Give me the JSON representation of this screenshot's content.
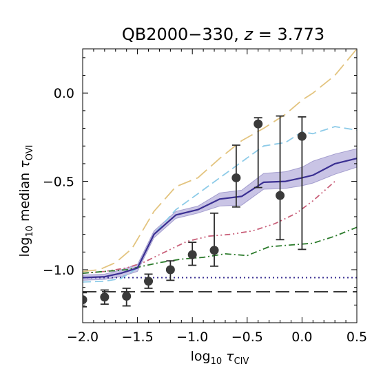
{
  "chart_data": {
    "type": "line",
    "title_main": "QB2000−330, ",
    "title_var": "z",
    "title_eq": " = 3.773",
    "xlabel_log": "log",
    "xlabel_base": "10",
    "xlabel_tau": " τ",
    "xlabel_sub": "CIV",
    "ylabel_prefix": "log",
    "ylabel_base": "10",
    "ylabel_text": " median ",
    "ylabel_tau": "τ",
    "ylabel_sub": "OVI",
    "xlim": [
      -2.0,
      0.5
    ],
    "ylim": [
      -1.3,
      0.25
    ],
    "xticks": [
      -2.0,
      -1.5,
      -1.0,
      -0.5,
      0.0,
      0.5
    ],
    "xtick_labels": [
      "−2.0",
      "−1.5",
      "−1.0",
      "−0.5",
      "0.0",
      "0.5"
    ],
    "yticks": [
      -1.0,
      -0.5,
      0.0
    ],
    "ytick_labels": [
      "−1.0",
      "−0.5",
      "0.0"
    ],
    "observed": {
      "x": [
        -2.0,
        -1.8,
        -1.6,
        -1.4,
        -1.2,
        -1.0,
        -0.8,
        -0.6,
        -0.4,
        -0.2,
        0.0
      ],
      "y": [
        -1.17,
        -1.155,
        -1.15,
        -1.065,
        -1.0,
        -0.915,
        -0.89,
        -0.48,
        -0.175,
        -0.58,
        -0.245
      ],
      "err_low": [
        0.04,
        0.04,
        0.055,
        0.04,
        0.06,
        0.06,
        0.09,
        0.165,
        0.36,
        0.25,
        0.64
      ],
      "err_high": [
        0.04,
        0.04,
        0.045,
        0.04,
        0.05,
        0.07,
        0.21,
        0.185,
        0.035,
        0.45,
        0.11
      ]
    },
    "series": [
      {
        "color": "#e3c47f",
        "style": "longdash",
        "x": [
          -2.0,
          -1.85,
          -1.7,
          -1.55,
          -1.35,
          -1.15,
          -0.95,
          -0.75,
          -0.55,
          -0.35,
          -0.15,
          0.0,
          0.1,
          0.3,
          0.5
        ],
        "y": [
          -1.01,
          -1.0,
          -0.96,
          -0.88,
          -0.67,
          -0.53,
          -0.48,
          -0.37,
          -0.27,
          -0.2,
          -0.12,
          -0.04,
          0.0,
          0.1,
          0.25
        ]
      },
      {
        "color": "#8dcbe8",
        "style": "dashed",
        "x": [
          -2.0,
          -1.8,
          -1.65,
          -1.5,
          -1.35,
          -1.15,
          -0.95,
          -0.75,
          -0.55,
          -0.35,
          -0.15,
          0.0,
          0.1,
          0.3,
          0.5
        ],
        "y": [
          -1.07,
          -1.065,
          -1.05,
          -0.99,
          -0.8,
          -0.66,
          -0.57,
          -0.48,
          -0.39,
          -0.3,
          -0.28,
          -0.22,
          -0.23,
          -0.19,
          -0.21
        ]
      },
      {
        "color": "#c9607a",
        "style": "dashdotdot",
        "x": [
          -2.0,
          -1.8,
          -1.6,
          -1.45,
          -1.25,
          -1.05,
          -0.85,
          -0.65,
          -0.45,
          -0.25,
          -0.05,
          0.1,
          0.3
        ],
        "y": [
          -1.02,
          -1.01,
          -0.99,
          -0.96,
          -0.9,
          -0.84,
          -0.81,
          -0.8,
          -0.78,
          -0.74,
          -0.68,
          -0.61,
          -0.5
        ]
      },
      {
        "color": "#2a7a2a",
        "style": "dashdot",
        "x": [
          -2.0,
          -1.8,
          -1.6,
          -1.45,
          -1.3,
          -1.1,
          -0.9,
          -0.7,
          -0.5,
          -0.3,
          -0.1,
          0.1,
          0.3,
          0.5
        ],
        "y": [
          -1.02,
          -1.01,
          -1.0,
          -0.98,
          -0.96,
          -0.94,
          -0.93,
          -0.91,
          -0.92,
          -0.87,
          -0.86,
          -0.85,
          -0.81,
          -0.76
        ]
      },
      {
        "color": "#3a2f92",
        "style": "solid",
        "band_color": "#b7b0dc",
        "x": [
          -2.0,
          -1.8,
          -1.65,
          -1.5,
          -1.35,
          -1.15,
          -0.95,
          -0.75,
          -0.55,
          -0.35,
          -0.15,
          0.0,
          0.1,
          0.3,
          0.5
        ],
        "y": [
          -1.045,
          -1.04,
          -1.02,
          -0.99,
          -0.8,
          -0.69,
          -0.66,
          -0.6,
          -0.585,
          -0.505,
          -0.5,
          -0.48,
          -0.465,
          -0.4,
          -0.37
        ],
        "band_low": [
          -1.06,
          -1.055,
          -1.04,
          -1.01,
          -0.82,
          -0.71,
          -0.68,
          -0.64,
          -0.635,
          -0.545,
          -0.54,
          -0.525,
          -0.51,
          -0.46,
          -0.42
        ],
        "band_high": [
          -1.03,
          -1.025,
          -1.0,
          -0.97,
          -0.78,
          -0.67,
          -0.64,
          -0.565,
          -0.55,
          -0.455,
          -0.445,
          -0.42,
          -0.385,
          -0.345,
          -0.315
        ]
      }
    ],
    "reference_lines": [
      {
        "y": -1.045,
        "color": "#3a2f92",
        "style": "dotted"
      },
      {
        "y": -1.125,
        "color": "#222222",
        "style": "longdash"
      }
    ]
  }
}
